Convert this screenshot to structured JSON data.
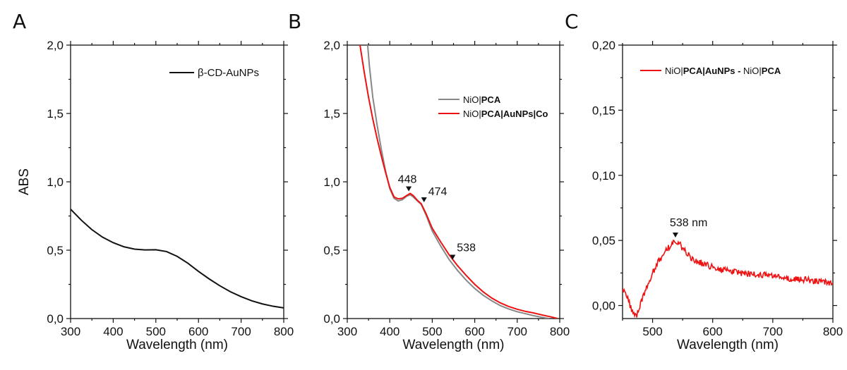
{
  "chart_data": [
    {
      "panel": "A",
      "type": "line",
      "xlabel": "Wavelength (nm)",
      "ylabel": "ABS",
      "xlim": [
        300,
        800
      ],
      "ylim": [
        0,
        2.0
      ],
      "xticks": [
        "300",
        "400",
        "500",
        "600",
        "700",
        "800"
      ],
      "yticks": [
        "0,0",
        "0,5",
        "1,0",
        "1,5",
        "2,0"
      ],
      "legend": "top-right",
      "series": [
        {
          "name": "β-CD-AuNPs",
          "color": "#111111",
          "points": [
            [
              300,
              0.8
            ],
            [
              325,
              0.72
            ],
            [
              350,
              0.65
            ],
            [
              375,
              0.595
            ],
            [
              400,
              0.555
            ],
            [
              425,
              0.525
            ],
            [
              450,
              0.508
            ],
            [
              475,
              0.502
            ],
            [
              500,
              0.503
            ],
            [
              525,
              0.49
            ],
            [
              550,
              0.455
            ],
            [
              575,
              0.405
            ],
            [
              600,
              0.345
            ],
            [
              625,
              0.29
            ],
            [
              650,
              0.24
            ],
            [
              675,
              0.196
            ],
            [
              700,
              0.16
            ],
            [
              725,
              0.13
            ],
            [
              750,
              0.107
            ],
            [
              775,
              0.09
            ],
            [
              800,
              0.078
            ]
          ]
        }
      ],
      "annotations": []
    },
    {
      "panel": "B",
      "type": "line",
      "xlabel": "Wavelength (nm)",
      "ylabel": "",
      "xlim": [
        300,
        800
      ],
      "ylim": [
        0,
        2.0
      ],
      "xticks": [
        "300",
        "400",
        "500",
        "600",
        "700",
        "800"
      ],
      "yticks": [
        "0,0",
        "0,5",
        "1,0",
        "1,5",
        "2,0"
      ],
      "legend": "top-right",
      "series": [
        {
          "name": "NiO|PCA",
          "name_parts": [
            {
              "text": "NiO|",
              "bold": false
            },
            {
              "text": "PCA",
              "bold": true
            }
          ],
          "color": "#888888",
          "points": [
            [
              348,
              2.0
            ],
            [
              352,
              1.85
            ],
            [
              360,
              1.62
            ],
            [
              370,
              1.42
            ],
            [
              380,
              1.24
            ],
            [
              390,
              1.08
            ],
            [
              400,
              0.95
            ],
            [
              410,
              0.88
            ],
            [
              420,
              0.86
            ],
            [
              430,
              0.87
            ],
            [
              440,
              0.895
            ],
            [
              448,
              0.905
            ],
            [
              455,
              0.89
            ],
            [
              465,
              0.86
            ],
            [
              474,
              0.835
            ],
            [
              485,
              0.76
            ],
            [
              500,
              0.64
            ],
            [
              520,
              0.53
            ],
            [
              540,
              0.43
            ],
            [
              560,
              0.35
            ],
            [
              580,
              0.28
            ],
            [
              600,
              0.22
            ],
            [
              620,
              0.17
            ],
            [
              640,
              0.13
            ],
            [
              660,
              0.095
            ],
            [
              680,
              0.07
            ],
            [
              700,
              0.05
            ],
            [
              720,
              0.035
            ],
            [
              740,
              0.02
            ],
            [
              760,
              0.008
            ],
            [
              775,
              0.0
            ]
          ]
        },
        {
          "name": "NiO|PCA|AuNPs|Co",
          "name_parts": [
            {
              "text": "NiO|",
              "bold": false
            },
            {
              "text": "PCA|AuNPs|Co",
              "bold": true
            }
          ],
          "color": "#ee1111",
          "points": [
            [
              330,
              2.0
            ],
            [
              340,
              1.8
            ],
            [
              350,
              1.62
            ],
            [
              360,
              1.46
            ],
            [
              370,
              1.32
            ],
            [
              380,
              1.19
            ],
            [
              390,
              1.07
            ],
            [
              400,
              0.96
            ],
            [
              410,
              0.89
            ],
            [
              420,
              0.875
            ],
            [
              430,
              0.88
            ],
            [
              440,
              0.9
            ],
            [
              448,
              0.915
            ],
            [
              455,
              0.9
            ],
            [
              465,
              0.865
            ],
            [
              474,
              0.84
            ],
            [
              485,
              0.77
            ],
            [
              500,
              0.66
            ],
            [
              520,
              0.56
            ],
            [
              540,
              0.465
            ],
            [
              560,
              0.385
            ],
            [
              580,
              0.315
            ],
            [
              600,
              0.25
            ],
            [
              620,
              0.195
            ],
            [
              640,
              0.15
            ],
            [
              660,
              0.115
            ],
            [
              680,
              0.088
            ],
            [
              700,
              0.068
            ],
            [
              720,
              0.052
            ],
            [
              740,
              0.04
            ],
            [
              760,
              0.025
            ],
            [
              780,
              0.012
            ],
            [
              795,
              0.0
            ]
          ]
        }
      ],
      "annotations": [
        {
          "text": "448",
          "x": 448,
          "y": 0.91
        },
        {
          "text": "474",
          "x": 474,
          "y": 0.84
        },
        {
          "text": "538",
          "x": 538,
          "y": 0.42
        }
      ]
    },
    {
      "panel": "C",
      "type": "line",
      "xlabel": "Wavelength (nm)",
      "ylabel": "",
      "xlim": [
        450,
        800
      ],
      "ylim": [
        -0.01,
        0.2
      ],
      "xticks": [
        "500",
        "600",
        "700",
        "800"
      ],
      "yticks": [
        "0,00",
        "0,05",
        "0,10",
        "0,15",
        "0,20"
      ],
      "legend": "top-right",
      "series": [
        {
          "name": "NiO|PCA|AuNPs - NiO|PCA",
          "name_parts": [
            {
              "text": "NiO|",
              "bold": false
            },
            {
              "text": "PCA|AuNPs - ",
              "bold": true
            },
            {
              "text": "NiO|",
              "bold": false
            },
            {
              "text": "PCA",
              "bold": true
            }
          ],
          "color": "#ee1111",
          "points": [
            [
              450,
              0.012
            ],
            [
              455,
              0.01
            ],
            [
              460,
              0.004
            ],
            [
              465,
              -0.004
            ],
            [
              470,
              -0.009
            ],
            [
              475,
              -0.006
            ],
            [
              480,
              0.002
            ],
            [
              490,
              0.014
            ],
            [
              500,
              0.025
            ],
            [
              510,
              0.034
            ],
            [
              520,
              0.041
            ],
            [
              530,
              0.046
            ],
            [
              538,
              0.049
            ],
            [
              545,
              0.047
            ],
            [
              555,
              0.041
            ],
            [
              565,
              0.036
            ],
            [
              575,
              0.034
            ],
            [
              590,
              0.031
            ],
            [
              610,
              0.028
            ],
            [
              630,
              0.026
            ],
            [
              650,
              0.025
            ],
            [
              670,
              0.024
            ],
            [
              690,
              0.023
            ],
            [
              710,
              0.022
            ],
            [
              730,
              0.021
            ],
            [
              750,
              0.02
            ],
            [
              770,
              0.019
            ],
            [
              790,
              0.018
            ],
            [
              800,
              0.017
            ]
          ]
        }
      ],
      "annotations": [
        {
          "text": "538 nm",
          "x": 538,
          "y": 0.049
        }
      ]
    }
  ]
}
